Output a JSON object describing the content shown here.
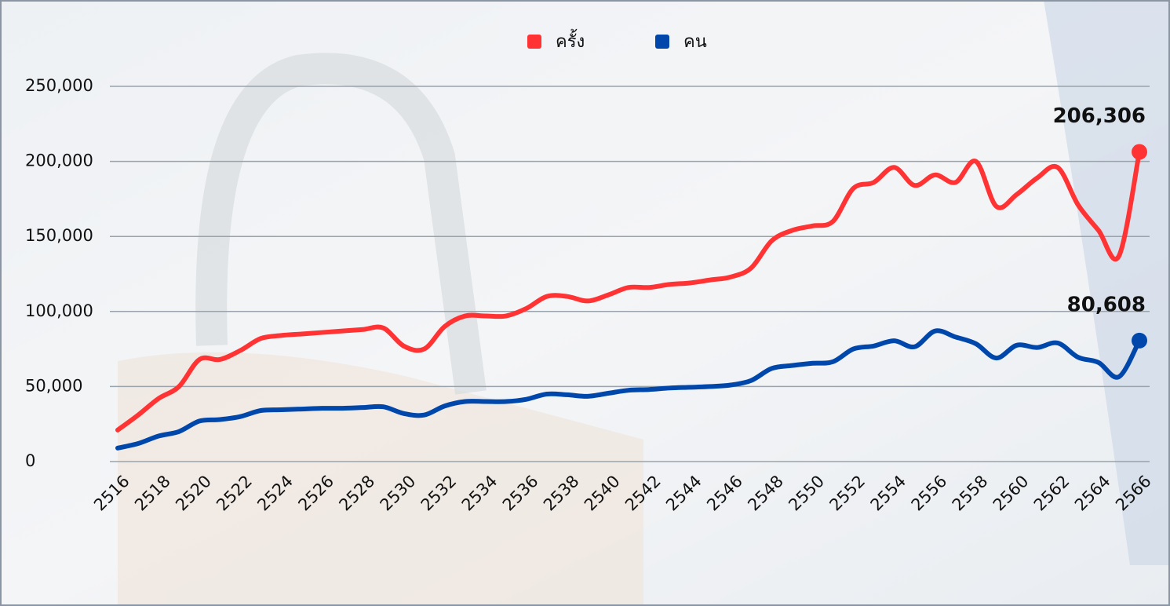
{
  "chart_data": {
    "type": "line",
    "categories": [
      "2516",
      null,
      "2518",
      null,
      "2520",
      null,
      "2522",
      null,
      "2524",
      null,
      "2526",
      null,
      "2528",
      null,
      "2530",
      null,
      "2532",
      null,
      "2534",
      null,
      "2536",
      null,
      "2538",
      null,
      "2540",
      null,
      "2542",
      null,
      "2544",
      null,
      "2546",
      null,
      "2548",
      null,
      "2550",
      null,
      "2552",
      null,
      "2554",
      null,
      "2556",
      null,
      "2558",
      null,
      "2560",
      null,
      "2562",
      null,
      "2564",
      null,
      "2566"
    ],
    "series": [
      {
        "name": "ครั้ง",
        "color": "#ff3333",
        "values": [
          21000,
          31000,
          42000,
          50000,
          68000,
          68000,
          74000,
          82000,
          84000,
          85000,
          86000,
          87000,
          88000,
          89000,
          77000,
          75000,
          90000,
          97000,
          97000,
          97000,
          102000,
          110000,
          110000,
          107000,
          111000,
          116000,
          116000,
          118000,
          119000,
          121000,
          123000,
          129000,
          147000,
          154000,
          157000,
          160000,
          182000,
          186000,
          196000,
          184000,
          191000,
          186000,
          200000,
          170000,
          178000,
          189000,
          196000,
          171000,
          154000,
          137000,
          206306
        ],
        "value_labels": [
          null,
          null,
          null,
          null,
          null,
          null,
          null,
          null,
          null,
          null,
          null,
          null,
          null,
          null,
          null,
          null,
          null,
          null,
          null,
          null,
          null,
          null,
          null,
          null,
          null,
          null,
          null,
          null,
          null,
          null,
          null,
          null,
          null,
          null,
          null,
          null,
          null,
          null,
          null,
          null,
          null,
          null,
          null,
          null,
          null,
          null,
          null,
          null,
          null,
          null,
          "206,306"
        ]
      },
      {
        "name": "คน",
        "color": "#0047ab",
        "values": [
          9000,
          12000,
          17000,
          20000,
          27000,
          28000,
          30000,
          34000,
          34500,
          35000,
          35500,
          35500,
          36000,
          36500,
          32000,
          31000,
          37000,
          40000,
          40000,
          40000,
          41500,
          45000,
          44500,
          43500,
          45500,
          47500,
          48000,
          49000,
          49500,
          50000,
          51000,
          54000,
          62000,
          64000,
          65500,
          66500,
          75000,
          77000,
          80500,
          76500,
          87000,
          83000,
          78500,
          69000,
          77500,
          76000,
          79000,
          69500,
          66000,
          56500,
          80608
        ],
        "value_labels": [
          null,
          null,
          null,
          null,
          null,
          null,
          null,
          null,
          null,
          null,
          null,
          null,
          null,
          null,
          null,
          null,
          null,
          null,
          null,
          null,
          null,
          null,
          null,
          null,
          null,
          null,
          null,
          null,
          null,
          null,
          null,
          null,
          null,
          null,
          null,
          null,
          null,
          null,
          null,
          null,
          null,
          null,
          null,
          null,
          null,
          null,
          null,
          null,
          null,
          null,
          "80,608"
        ]
      }
    ],
    "ylim": [
      0,
      250000
    ],
    "yticks": [
      0,
      {
        "value": 50000,
        "label": "50,000"
      },
      {
        "value": 100000,
        "label": "100,000"
      },
      {
        "value": 150000,
        "label": "150,000"
      },
      {
        "value": 200000,
        "label": "200,000"
      },
      {
        "value": 250000,
        "label": "250,000"
      }
    ],
    "grid": true,
    "legend": "top"
  }
}
